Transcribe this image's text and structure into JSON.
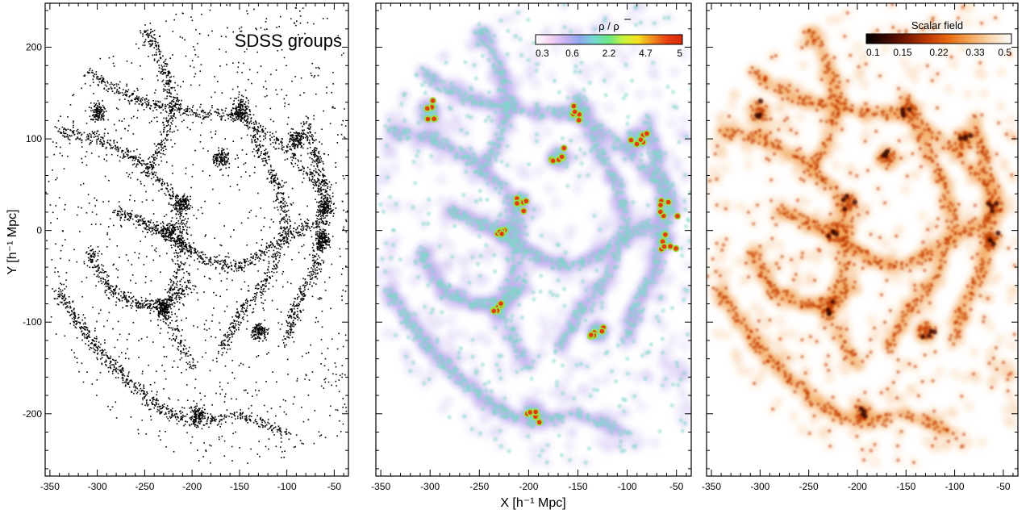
{
  "chart_data": [
    {
      "type": "scatter",
      "title": "",
      "annotation": "SDSS groups",
      "xlabel": "",
      "ylabel": "Y [h⁻¹ Mpc]",
      "xlim": [
        -355,
        -35
      ],
      "ylim": [
        -268,
        248
      ],
      "x_ticks": [
        "-350",
        "-300",
        "-250",
        "-200",
        "-150",
        "-100",
        "-50"
      ],
      "y_ticks": [
        "200",
        "100",
        "0",
        "-100",
        "-200"
      ],
      "filaments": [
        [
          [
            -330,
            185
          ],
          [
            -290,
            160
          ],
          [
            -250,
            140
          ],
          [
            -200,
            130
          ],
          [
            -150,
            125
          ],
          [
            -100,
            90
          ],
          [
            -60,
            40
          ]
        ],
        [
          [
            -340,
            110
          ],
          [
            -300,
            100
          ],
          [
            -260,
            80
          ],
          [
            -220,
            40
          ],
          [
            -210,
            0
          ],
          [
            -215,
            -40
          ],
          [
            -230,
            -90
          ],
          [
            -200,
            -150
          ]
        ],
        [
          [
            -150,
            150
          ],
          [
            -130,
            90
          ],
          [
            -110,
            50
          ],
          [
            -100,
            0
          ],
          [
            -120,
            -50
          ],
          [
            -150,
            -90
          ],
          [
            -170,
            -130
          ]
        ],
        [
          [
            -345,
            -60
          ],
          [
            -320,
            -100
          ],
          [
            -300,
            -130
          ],
          [
            -270,
            -160
          ],
          [
            -240,
            -190
          ],
          [
            -200,
            -210
          ],
          [
            -150,
            -200
          ],
          [
            -100,
            -220
          ]
        ],
        [
          [
            -280,
            20
          ],
          [
            -250,
            10
          ],
          [
            -220,
            -10
          ],
          [
            -190,
            -30
          ],
          [
            -150,
            -40
          ],
          [
            -110,
            -10
          ],
          [
            -70,
            10
          ]
        ],
        [
          [
            -250,
            220
          ],
          [
            -230,
            180
          ],
          [
            -220,
            140
          ],
          [
            -230,
            100
          ],
          [
            -250,
            60
          ]
        ],
        [
          [
            -80,
            120
          ],
          [
            -70,
            80
          ],
          [
            -60,
            40
          ],
          [
            -65,
            0
          ],
          [
            -70,
            -40
          ],
          [
            -90,
            -80
          ],
          [
            -100,
            -120
          ]
        ],
        [
          [
            -310,
            -20
          ],
          [
            -290,
            -60
          ],
          [
            -260,
            -80
          ],
          [
            -230,
            -80
          ],
          [
            -200,
            -60
          ]
        ]
      ],
      "clusters": [
        [
          -225,
          0
        ],
        [
          -210,
          30
        ],
        [
          -62,
          -10
        ],
        [
          -60,
          25
        ],
        [
          -230,
          -85
        ],
        [
          -150,
          130
        ],
        [
          -130,
          -110
        ],
        [
          -300,
          130
        ],
        [
          -90,
          100
        ],
        [
          -195,
          -200
        ],
        [
          -170,
          80
        ]
      ]
    },
    {
      "type": "heatmap",
      "title": "",
      "xlabel": "X [h⁻¹ Mpc]",
      "ylabel": "",
      "xlim": [
        -355,
        -35
      ],
      "ylim": [
        -268,
        248
      ],
      "x_ticks": [
        "-350",
        "-300",
        "-250",
        "-200",
        "-150",
        "-100",
        "-50"
      ],
      "colorbar": {
        "title": "ρ / ρ",
        "ticks": [
          "0.3",
          "0.6",
          "2.2",
          "4.7",
          "5"
        ],
        "colors": [
          "#ffffff",
          "#f5d3f2",
          "#c9b3f0",
          "#8fa8ee",
          "#75d8d0",
          "#6ee882",
          "#c8f23e",
          "#f5e020",
          "#f08a20",
          "#e83c10",
          "#d42a0a"
        ]
      }
    },
    {
      "type": "heatmap",
      "title": "",
      "xlabel": "",
      "ylabel": "",
      "xlim": [
        -355,
        -35
      ],
      "ylim": [
        -268,
        248
      ],
      "x_ticks": [
        "-350",
        "-300",
        "-250",
        "-200",
        "-150",
        "-100",
        "-50"
      ],
      "colorbar": {
        "title": "Scalar field",
        "ticks": [
          "0.1",
          "0.15",
          "0.22",
          "0.33",
          "0.5"
        ],
        "colors": [
          "#000000",
          "#3a0800",
          "#7a1a00",
          "#c13a00",
          "#e86b10",
          "#f4a65a",
          "#fbd7b0",
          "#ffffff"
        ]
      }
    }
  ]
}
